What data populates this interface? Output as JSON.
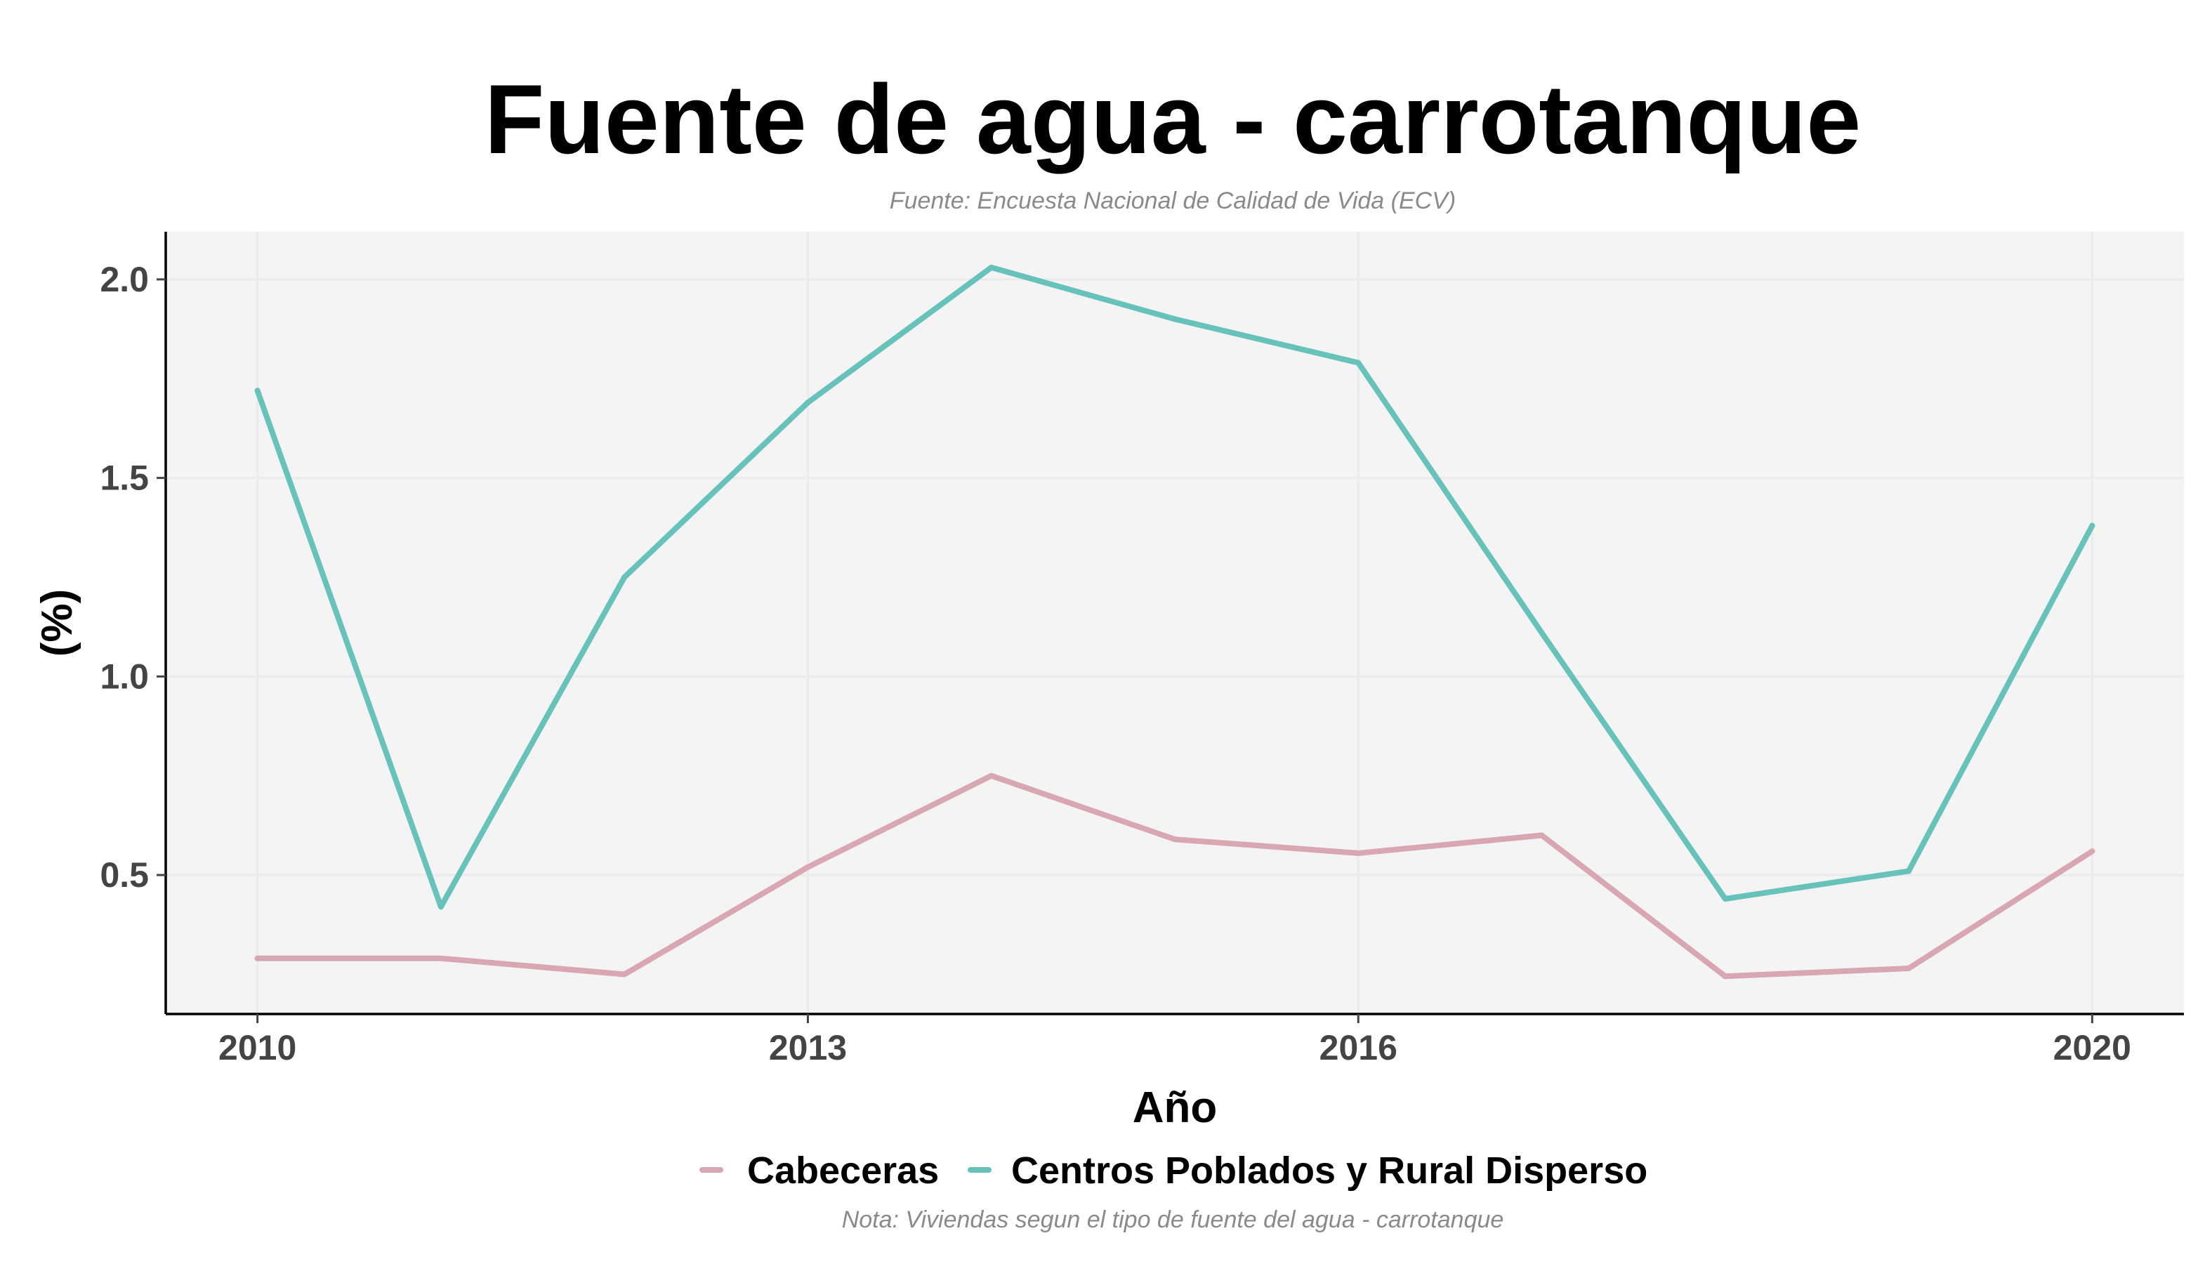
{
  "chart_data": {
    "type": "line",
    "title": "Fuente de agua - carrotanque",
    "subtitle": "Fuente: Encuesta Nacional de Calidad de Vida (ECV)",
    "caption": "Nota: Viviendas segun el tipo de fuente del agua - carrotanque",
    "xlabel": "Año",
    "ylabel": "(%)",
    "x": [
      2010,
      2011,
      2012,
      2013,
      2014,
      2015,
      2016,
      2017,
      2018,
      2019,
      2020
    ],
    "xlim": [
      2009.5,
      2020.5
    ],
    "ylim": [
      0.15,
      2.12
    ],
    "xticks": [
      2010,
      2013,
      2016,
      2020
    ],
    "xtick_labels": [
      "2010",
      "2013",
      "2016",
      "2020"
    ],
    "yticks": [
      0.5,
      1.0,
      1.5,
      2.0
    ],
    "ytick_labels": [
      "0.5",
      "1.0",
      "1.5",
      "2.0"
    ],
    "grid": true,
    "legend_position": "bottom",
    "series": [
      {
        "name": "Cabeceras",
        "color": "#d8a7b1",
        "values": [
          0.29,
          0.29,
          0.25,
          0.52,
          0.75,
          0.59,
          0.555,
          0.6,
          0.245,
          0.265,
          0.56
        ]
      },
      {
        "name": "Centros Poblados y Rural Disperso",
        "color": "#66c2bb",
        "values": [
          1.72,
          0.42,
          1.25,
          1.69,
          2.03,
          1.9,
          1.79,
          1.11,
          0.44,
          0.51,
          1.38
        ]
      }
    ]
  }
}
